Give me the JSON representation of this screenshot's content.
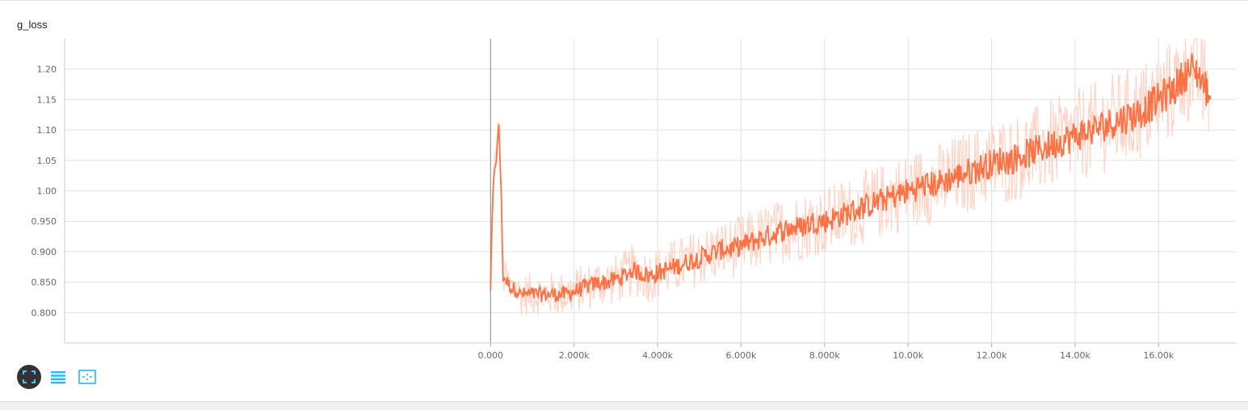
{
  "card": {
    "title": "g_loss"
  },
  "toolbar": {
    "buttons": [
      {
        "icon": "fit-to-data-icon",
        "active": true
      },
      {
        "icon": "toggle-log-scale-icon",
        "active": false
      },
      {
        "icon": "toggle-y-axis-icon",
        "active": false
      }
    ]
  },
  "chart_data": {
    "type": "line",
    "title": "g_loss",
    "xlabel": "",
    "ylabel": "",
    "xlim": [
      -10200,
      17850
    ],
    "ylim": [
      0.75,
      1.25
    ],
    "x_ticks": [
      "0.000",
      "2.000k",
      "4.000k",
      "6.000k",
      "8.000k",
      "10.00k",
      "12.00k",
      "14.00k",
      "16.00k"
    ],
    "x_tick_values": [
      0,
      2000,
      4000,
      6000,
      8000,
      10000,
      12000,
      14000,
      16000
    ],
    "y_ticks": [
      "0.800",
      "0.850",
      "0.900",
      "0.950",
      "1.00",
      "1.05",
      "1.10",
      "1.15",
      "1.20"
    ],
    "y_tick_values": [
      0.8,
      0.85,
      0.9,
      0.95,
      1.0,
      1.05,
      1.1,
      1.15,
      1.2
    ],
    "grid": true,
    "colors": {
      "smoothed": "#ff7043",
      "raw": "#ffccbc"
    },
    "series": [
      {
        "smoothing": "smoothed",
        "x": [
          0,
          50,
          100,
          150,
          200,
          250,
          300,
          400,
          500,
          600,
          700,
          800,
          1000,
          1200,
          1400,
          1600,
          1800,
          2000,
          2200,
          2400,
          2600,
          2800,
          3000,
          3200,
          3400,
          3600,
          3800,
          4000,
          4200,
          4400,
          4600,
          4800,
          5000,
          5200,
          5400,
          5600,
          5800,
          6000,
          6200,
          6400,
          6600,
          6800,
          7000,
          7200,
          7400,
          7600,
          7800,
          8000,
          8200,
          8400,
          8600,
          8800,
          9000,
          9200,
          9400,
          9600,
          9800,
          10000,
          10200,
          10400,
          10600,
          10800,
          11000,
          11200,
          11400,
          11600,
          11800,
          12000,
          12200,
          12400,
          12600,
          12800,
          13000,
          13200,
          13400,
          13600,
          13800,
          14000,
          14200,
          14400,
          14600,
          14800,
          15000,
          15200,
          15400,
          15600,
          15800,
          16000,
          16200,
          16400,
          16600,
          16800,
          17000,
          17100,
          17200
        ],
        "y": [
          0.84,
          0.98,
          1.04,
          1.06,
          1.11,
          1.01,
          0.86,
          0.85,
          0.84,
          0.84,
          0.83,
          0.83,
          0.83,
          0.83,
          0.83,
          0.83,
          0.83,
          0.835,
          0.84,
          0.845,
          0.85,
          0.85,
          0.855,
          0.86,
          0.87,
          0.865,
          0.86,
          0.865,
          0.87,
          0.875,
          0.88,
          0.885,
          0.89,
          0.895,
          0.9,
          0.905,
          0.905,
          0.91,
          0.915,
          0.92,
          0.925,
          0.93,
          0.935,
          0.94,
          0.94,
          0.945,
          0.95,
          0.95,
          0.955,
          0.96,
          0.965,
          0.97,
          0.975,
          0.98,
          0.985,
          0.99,
          0.995,
          1.0,
          1.005,
          1.01,
          1.01,
          1.015,
          1.02,
          1.025,
          1.03,
          1.035,
          1.04,
          1.045,
          1.05,
          1.05,
          1.055,
          1.06,
          1.065,
          1.07,
          1.075,
          1.08,
          1.085,
          1.09,
          1.095,
          1.1,
          1.105,
          1.11,
          1.115,
          1.12,
          1.125,
          1.13,
          1.14,
          1.15,
          1.16,
          1.17,
          1.19,
          1.2,
          1.19,
          1.17,
          1.165
        ]
      }
    ]
  }
}
